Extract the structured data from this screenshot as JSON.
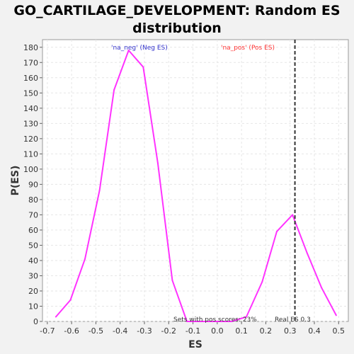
{
  "chart_data": {
    "type": "line",
    "title_line1": "GO_CARTILAGE_DEVELOPMENT: Random ES",
    "title_line2": "distribution",
    "xlabel": "ES",
    "ylabel": "P(ES)",
    "xlim": [
      -0.72,
      0.54
    ],
    "ylim": [
      0,
      185
    ],
    "x_ticks": [
      "-0.7",
      "-0.6",
      "-0.5",
      "-0.4",
      "-0.3",
      "-0.2",
      "-0.1",
      "0.0",
      "0.1",
      "0.2",
      "0.3",
      "0.4",
      "0.5"
    ],
    "x_tick_values": [
      -0.7,
      -0.6,
      -0.5,
      -0.4,
      -0.3,
      -0.2,
      -0.1,
      0.0,
      0.1,
      0.2,
      0.3,
      0.4,
      0.5
    ],
    "y_tick_values": [
      0,
      10,
      20,
      30,
      40,
      50,
      60,
      70,
      80,
      90,
      100,
      110,
      120,
      130,
      140,
      150,
      160,
      170,
      180
    ],
    "grid": true,
    "series": [
      {
        "color": "#ff33ff",
        "x": [
          -0.665,
          -0.605,
          -0.545,
          -0.485,
          -0.425,
          -0.365,
          -0.305,
          -0.245,
          -0.185,
          -0.125,
          -0.065,
          0.0,
          0.06,
          0.12,
          0.185,
          0.245,
          0.31,
          0.37,
          0.43,
          0.49
        ],
        "y": [
          3,
          14,
          41,
          86,
          152,
          178,
          167,
          104,
          27,
          0,
          0,
          0,
          0,
          3,
          26,
          59,
          70,
          45,
          22,
          4
        ]
      }
    ],
    "real_es": 0.32,
    "real_es_label": "Real ES 0.3",
    "pos_scores_label": "Sets with pos scores: 23%",
    "legend": [
      {
        "label": "'na_neg' (Neg ES)",
        "color": "#3333cc"
      },
      {
        "label": "'na_pos' (Pos ES)",
        "color": "#ff3333"
      }
    ],
    "colors": {
      "plot_bg": "#ffffff",
      "grid": "#e6e6e6",
      "line": "#ff33ff",
      "marker": "#333333"
    }
  }
}
